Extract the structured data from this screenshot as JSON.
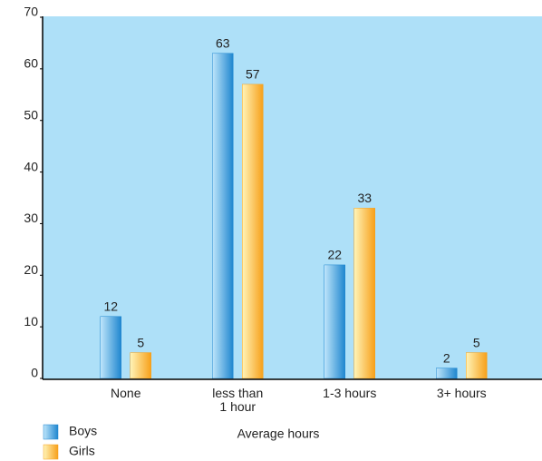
{
  "chart_data": {
    "type": "bar",
    "categories": [
      "None",
      "less than\n1 hour",
      "1-3 hours",
      "3+ hours"
    ],
    "series": [
      {
        "name": "Boys",
        "color": "#1f86cf",
        "values": [
          12,
          63,
          22,
          2
        ]
      },
      {
        "name": "Girls",
        "color": "#f7a01a",
        "values": [
          5,
          57,
          33,
          5
        ]
      }
    ],
    "x_label": "Average hours",
    "ylim": [
      0,
      70
    ],
    "yticks": [
      0,
      10,
      20,
      30,
      40,
      50,
      60,
      70
    ],
    "grid": false,
    "legend": "bottom-left"
  }
}
